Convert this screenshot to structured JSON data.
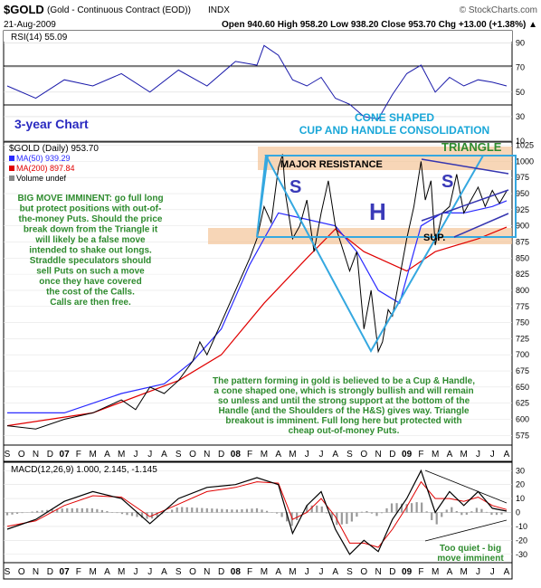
{
  "header": {
    "symbol": "$GOLD",
    "description": "(Gold - Continuous Contract (EOD))",
    "exchange": "INDX",
    "copyright": "© StockCharts.com",
    "date": "21-Aug-2009",
    "quote": "Open 940.60   High 958.20   Low 938.20   Close 953.70   Chg +13.00 (+1.38%) ▲"
  },
  "rsi_panel": {
    "label": "RSI(14) 55.09",
    "ticks": [
      "90",
      "70",
      "50",
      "30",
      "10"
    ],
    "notes": [
      "3-year Chart",
      "CONE SHAPED",
      "CUP AND HANDLE CONSOLIDATION"
    ]
  },
  "price_panel": {
    "legend": [
      {
        "text": "$GOLD (Daily) 953.70",
        "color": "#000000"
      },
      {
        "text": "MA(50) 939.29",
        "color": "#2a2aff"
      },
      {
        "text": "MA(200) 897.84",
        "color": "#e00000"
      },
      {
        "text": "Volume undef",
        "color": "#000000"
      }
    ],
    "y_ticks": [
      "1025",
      "1000",
      "975",
      "950",
      "925",
      "900",
      "875",
      "850",
      "825",
      "800",
      "775",
      "750",
      "725",
      "700",
      "675",
      "650",
      "625",
      "600",
      "575"
    ],
    "annotations": {
      "triangle": "TRIANGLE",
      "major_resistance": "MAJOR RESISTANCE",
      "sup": "SUP.",
      "s1": "S",
      "h": "H",
      "s2": "S",
      "big_move": [
        "BIG MOVE IMMINENT: go full long",
        "but protect positions with out-of-",
        "the-money Puts. Should the price",
        "break down from the Triangle it",
        "will likely be a false move",
        "intended to shake out longs.",
        "Straddle speculators should",
        "sell Puts on such a move",
        "once they have covered",
        "the cost of the Calls.",
        "Calls are then free."
      ],
      "pattern": [
        "The pattern forming in gold is believed to be a Cup & Handle,",
        "a cone shaped one, which is strongly bullish and will remain",
        "so unless and until the strong support at the bottom of the",
        "Handle (and the Shoulders of the H&S) gives way. Triangle",
        "breakout is imminent. Full long here but protected with",
        "cheap out-of-money Puts."
      ]
    }
  },
  "x_axis": {
    "labels": [
      "S",
      "O",
      "N",
      "D",
      "07",
      "F",
      "M",
      "A",
      "M",
      "J",
      "J",
      "A",
      "S",
      "O",
      "N",
      "D",
      "08",
      "F",
      "M",
      "A",
      "M",
      "J",
      "J",
      "A",
      "S",
      "O",
      "N",
      "D",
      "09",
      "F",
      "M",
      "A",
      "M",
      "J",
      "J",
      "A"
    ],
    "bold": [
      "07",
      "08",
      "09"
    ]
  },
  "macd_panel": {
    "label": "MACD(12,26,9) 1.000, 2.145, -1.145",
    "ticks": [
      "30",
      "20",
      "10",
      "0",
      "-10",
      "-20",
      "-30"
    ],
    "note": [
      "Too quiet - big",
      "move imminent"
    ]
  },
  "chart_data": {
    "type": "line",
    "symbol": "$GOLD",
    "x_range": [
      "2006-09",
      "2009-08"
    ],
    "price": {
      "ylim": [
        560,
        1030
      ],
      "points": [
        [
          0,
          590
        ],
        [
          2,
          585
        ],
        [
          4,
          600
        ],
        [
          6,
          610
        ],
        [
          8,
          630
        ],
        [
          9,
          615
        ],
        [
          10,
          650
        ],
        [
          11,
          640
        ],
        [
          12,
          660
        ],
        [
          13,
          690
        ],
        [
          13.5,
          720
        ],
        [
          14,
          700
        ],
        [
          15,
          750
        ],
        [
          16,
          800
        ],
        [
          17,
          850
        ],
        [
          17.5,
          880
        ],
        [
          18,
          930
        ],
        [
          18.5,
          905
        ],
        [
          19,
          990
        ],
        [
          19.3,
          1011
        ],
        [
          19.5,
          950
        ],
        [
          20,
          880
        ],
        [
          20.5,
          900
        ],
        [
          21,
          940
        ],
        [
          21.5,
          860
        ],
        [
          22,
          920
        ],
        [
          22.5,
          970
        ],
        [
          23,
          900
        ],
        [
          24,
          830
        ],
        [
          24.5,
          860
        ],
        [
          25,
          740
        ],
        [
          25.5,
          800
        ],
        [
          26,
          705
        ],
        [
          26.3,
          720
        ],
        [
          26.7,
          770
        ],
        [
          27,
          760
        ],
        [
          27.5,
          820
        ],
        [
          28,
          880
        ],
        [
          28.5,
          930
        ],
        [
          29,
          1000
        ],
        [
          29.3,
          940
        ],
        [
          29.7,
          970
        ],
        [
          30,
          870
        ],
        [
          30.5,
          920
        ],
        [
          31,
          930
        ],
        [
          31.5,
          980
        ],
        [
          32,
          920
        ],
        [
          32.5,
          940
        ],
        [
          33,
          960
        ],
        [
          33.5,
          930
        ],
        [
          34,
          955
        ],
        [
          34.5,
          935
        ],
        [
          35,
          954
        ]
      ]
    },
    "ma50": {
      "ylim": [
        560,
        1030
      ],
      "points": [
        [
          0,
          610
        ],
        [
          4,
          610
        ],
        [
          8,
          640
        ],
        [
          11,
          655
        ],
        [
          13,
          690
        ],
        [
          15,
          740
        ],
        [
          17,
          840
        ],
        [
          19,
          920
        ],
        [
          21,
          910
        ],
        [
          23,
          900
        ],
        [
          24.5,
          860
        ],
        [
          26,
          800
        ],
        [
          27.5,
          780
        ],
        [
          29,
          900
        ],
        [
          30.5,
          920
        ],
        [
          32,
          920
        ],
        [
          34,
          930
        ],
        [
          35,
          939
        ]
      ]
    },
    "ma200": {
      "ylim": [
        560,
        1030
      ],
      "points": [
        [
          0,
          590
        ],
        [
          6,
          610
        ],
        [
          12,
          660
        ],
        [
          15,
          700
        ],
        [
          18,
          780
        ],
        [
          21,
          850
        ],
        [
          23,
          895
        ],
        [
          25,
          860
        ],
        [
          28,
          830
        ],
        [
          30,
          860
        ],
        [
          33,
          880
        ],
        [
          35,
          898
        ]
      ]
    },
    "rsi": {
      "ylim": [
        10,
        100
      ],
      "points": [
        [
          0,
          55
        ],
        [
          2,
          45
        ],
        [
          4,
          60
        ],
        [
          6,
          55
        ],
        [
          8,
          65
        ],
        [
          10,
          50
        ],
        [
          12,
          68
        ],
        [
          14,
          55
        ],
        [
          16,
          75
        ],
        [
          17.5,
          72
        ],
        [
          18,
          88
        ],
        [
          19,
          80
        ],
        [
          20,
          60
        ],
        [
          21,
          55
        ],
        [
          22,
          62
        ],
        [
          23,
          45
        ],
        [
          24,
          40
        ],
        [
          25,
          30
        ],
        [
          26,
          28
        ],
        [
          27,
          48
        ],
        [
          28,
          65
        ],
        [
          29,
          72
        ],
        [
          30,
          50
        ],
        [
          31,
          62
        ],
        [
          32,
          55
        ],
        [
          33,
          60
        ],
        [
          34,
          58
        ],
        [
          35,
          55
        ]
      ]
    },
    "macd": {
      "ylim": [
        -36,
        36
      ],
      "points": [
        [
          0,
          -12
        ],
        [
          2,
          -5
        ],
        [
          4,
          8
        ],
        [
          6,
          15
        ],
        [
          8,
          10
        ],
        [
          10,
          -8
        ],
        [
          12,
          10
        ],
        [
          14,
          18
        ],
        [
          16,
          20
        ],
        [
          17.5,
          25
        ],
        [
          19,
          20
        ],
        [
          20,
          -15
        ],
        [
          21,
          5
        ],
        [
          22,
          15
        ],
        [
          23,
          -12
        ],
        [
          24,
          -30
        ],
        [
          25,
          -20
        ],
        [
          26,
          -28
        ],
        [
          27,
          -5
        ],
        [
          28,
          10
        ],
        [
          29,
          30
        ],
        [
          30,
          0
        ],
        [
          31,
          15
        ],
        [
          32,
          5
        ],
        [
          33,
          15
        ],
        [
          34,
          3
        ],
        [
          35,
          1
        ]
      ]
    },
    "signal": {
      "ylim": [
        -36,
        36
      ],
      "points": [
        [
          0,
          -10
        ],
        [
          2,
          -6
        ],
        [
          4,
          5
        ],
        [
          6,
          12
        ],
        [
          8,
          11
        ],
        [
          10,
          -3
        ],
        [
          12,
          6
        ],
        [
          14,
          15
        ],
        [
          16,
          18
        ],
        [
          17.5,
          22
        ],
        [
          19,
          21
        ],
        [
          20,
          -5
        ],
        [
          21,
          0
        ],
        [
          22,
          10
        ],
        [
          23,
          -3
        ],
        [
          24,
          -22
        ],
        [
          25,
          -22
        ],
        [
          26,
          -25
        ],
        [
          27,
          -12
        ],
        [
          28,
          4
        ],
        [
          29,
          22
        ],
        [
          30,
          10
        ],
        [
          31,
          10
        ],
        [
          32,
          8
        ],
        [
          33,
          11
        ],
        [
          34,
          5
        ],
        [
          35,
          2.1
        ]
      ]
    }
  }
}
